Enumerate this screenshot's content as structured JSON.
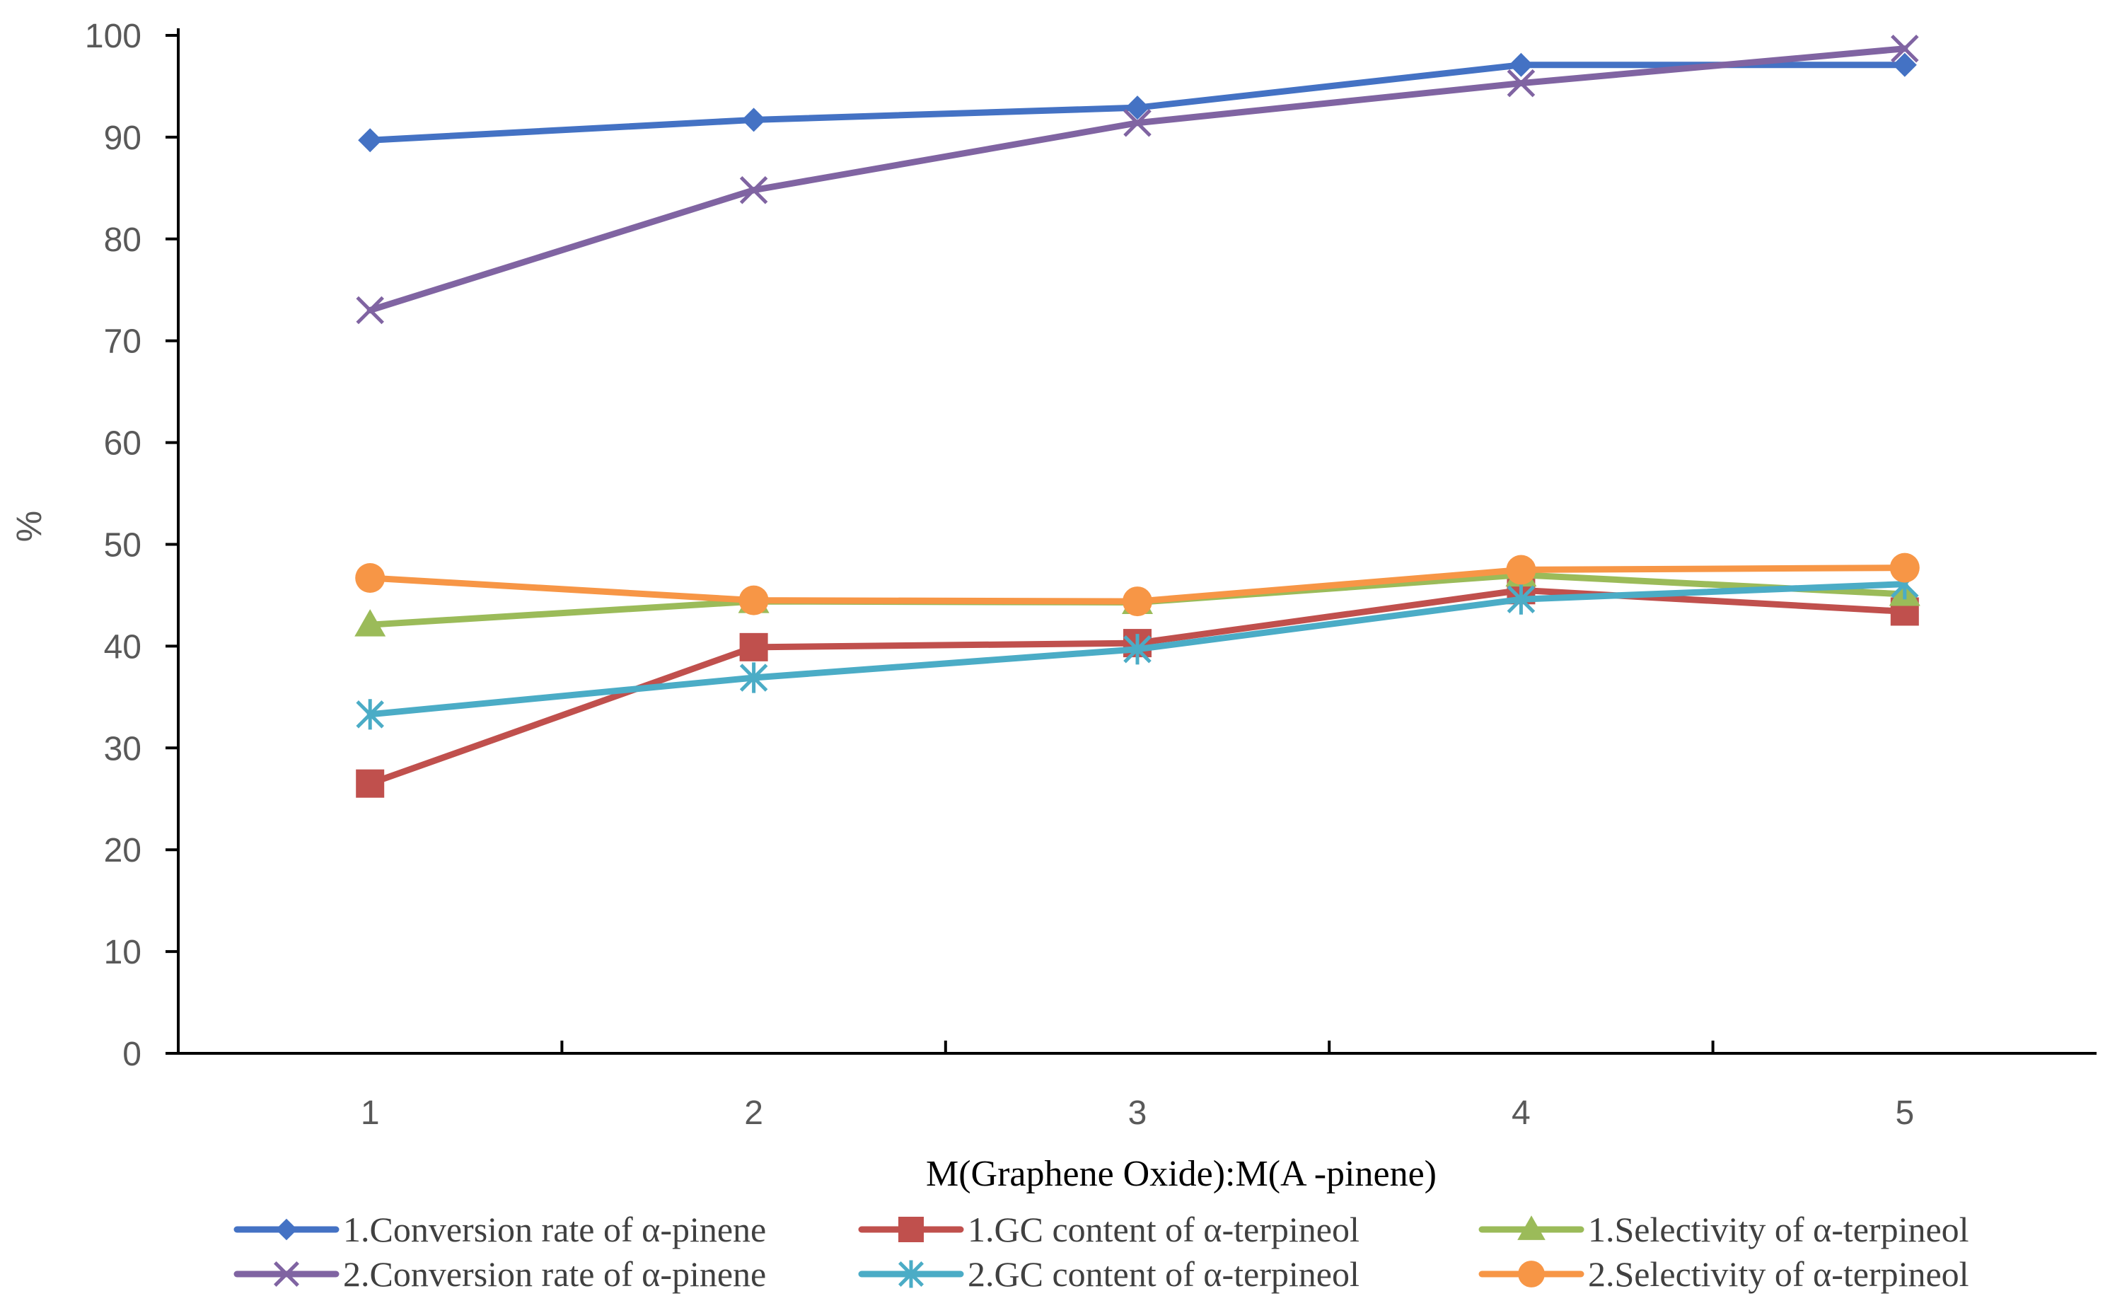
{
  "chart_data": {
    "type": "line",
    "title": "",
    "xlabel": "M(Graphene Oxide):M(A -pinene)",
    "ylabel": "%",
    "categories": [
      "1",
      "2",
      "3",
      "4",
      "5"
    ],
    "ylim": [
      0,
      100
    ],
    "yticks": [
      "0",
      "10",
      "20",
      "30",
      "40",
      "50",
      "60",
      "70",
      "80",
      "90",
      "100"
    ],
    "grid": false,
    "legend_position": "bottom",
    "series": [
      {
        "name": "1.Conversion rate of α-pinene",
        "values": [
          89.7,
          91.7,
          92.9,
          97.1,
          97.1
        ],
        "color": "#4472C4",
        "marker": "diamond"
      },
      {
        "name": "1.GC content of α-terpineol",
        "values": [
          26.5,
          39.9,
          40.3,
          45.5,
          43.4
        ],
        "color": "#C0504D",
        "marker": "square"
      },
      {
        "name": "1.Selectivity of α-terpineol",
        "values": [
          42.1,
          44.4,
          44.3,
          47.0,
          45.1
        ],
        "color": "#9BBB59",
        "marker": "triangle"
      },
      {
        "name": "2.Conversion rate of α-pinene",
        "values": [
          73.0,
          84.8,
          91.4,
          95.3,
          98.7
        ],
        "color": "#8064A2",
        "marker": "x"
      },
      {
        "name": "2.GC content of α-terpineol",
        "values": [
          33.3,
          36.9,
          39.7,
          44.6,
          46.1
        ],
        "color": "#4BACC6",
        "marker": "star"
      },
      {
        "name": "2.Selectivity of α-terpineol",
        "values": [
          46.7,
          44.5,
          44.4,
          47.5,
          47.7
        ],
        "color": "#F79646",
        "marker": "circle"
      }
    ]
  }
}
